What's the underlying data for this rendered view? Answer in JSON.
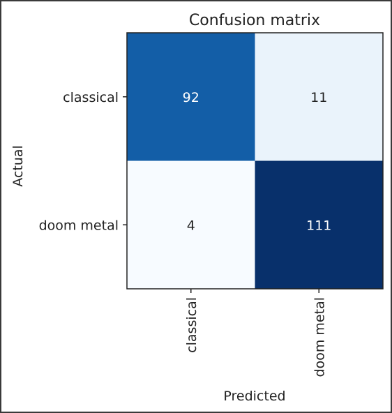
{
  "chart_data": {
    "type": "heatmap",
    "title": "Confusion matrix",
    "xlabel": "Predicted",
    "ylabel": "Actual",
    "x_categories": [
      "classical",
      "doom metal"
    ],
    "y_categories": [
      "classical",
      "doom metal"
    ],
    "values": [
      [
        92,
        11
      ],
      [
        4,
        111
      ]
    ],
    "colormap": "Blues",
    "colors": {
      "low": "#f7fbff",
      "high": "#08306b",
      "text_dark": "#222222",
      "text_light": "#ffffff"
    }
  }
}
